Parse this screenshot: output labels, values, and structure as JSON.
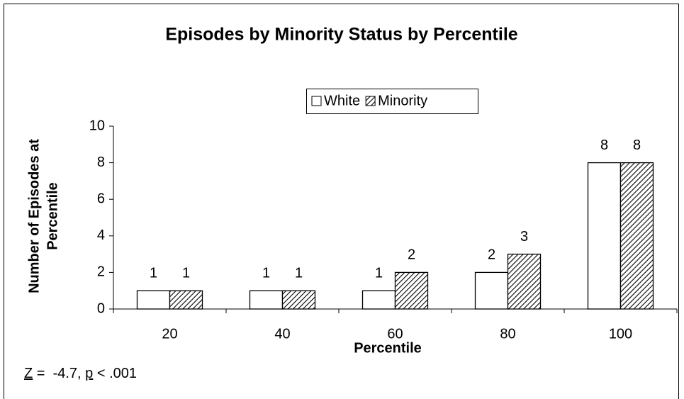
{
  "chart_data": {
    "type": "bar",
    "title": "Episodes by Minority Status by Percentile",
    "x_label": "Percentile",
    "y_label_lines": [
      "Number of Episodes at",
      "Percentile"
    ],
    "categories": [
      "20",
      "40",
      "60",
      "80",
      "100"
    ],
    "series": [
      {
        "name": "White",
        "color": "#ffffff",
        "pattern": "none",
        "values": [
          1,
          1,
          1,
          2,
          8
        ]
      },
      {
        "name": "Minority",
        "color": "#ffffff",
        "pattern": "diagonal",
        "values": [
          1,
          1,
          2,
          3,
          8
        ]
      }
    ],
    "ylim": [
      0,
      10
    ],
    "yticks": [
      0,
      2,
      4,
      6,
      8,
      10
    ],
    "grid": false,
    "legend": "top",
    "annotation_parts": [
      "Z",
      " =  -4.7, ",
      "p",
      " < .001"
    ]
  }
}
